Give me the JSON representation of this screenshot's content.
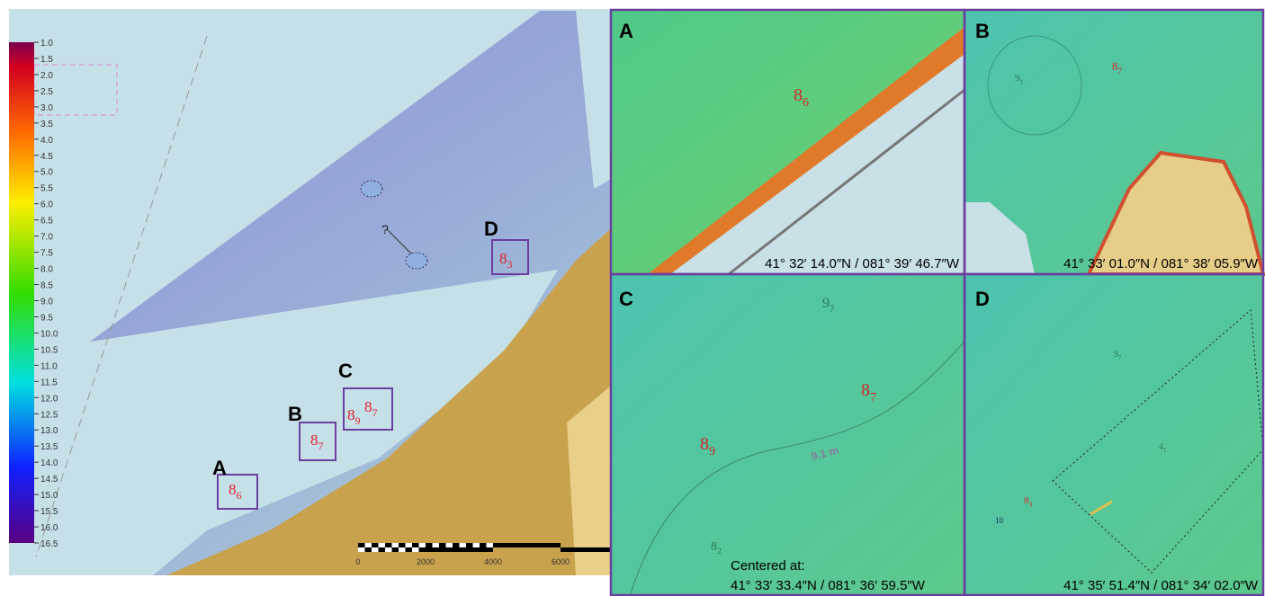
{
  "colorbar": {
    "ticks": [
      "1.0",
      "1.5",
      "2.0",
      "2.5",
      "3.0",
      "3.5",
      "4.0",
      "4.5",
      "5.0",
      "5.5",
      "6.0",
      "6.5",
      "7.0",
      "7.5",
      "8.0",
      "8.5",
      "9.0",
      "9.5",
      "10.0",
      "10.5",
      "11.0",
      "11.5",
      "12.0",
      "12.5",
      "13.0",
      "13.5",
      "14.0",
      "14.5",
      "15.0",
      "15.5",
      "16.0",
      "16.5"
    ]
  },
  "scale_bar": {
    "ticks": [
      "0",
      "2000",
      "4000",
      "6000"
    ]
  },
  "overview": {
    "question": "?",
    "boxes": [
      {
        "label": "A",
        "soundings": [
          {
            "depth": "8",
            "sub": "6"
          }
        ]
      },
      {
        "label": "B",
        "soundings": [
          {
            "depth": "8",
            "sub": "7"
          }
        ]
      },
      {
        "label": "C",
        "soundings": [
          {
            "depth": "8",
            "sub": "9"
          },
          {
            "depth": "8",
            "sub": "7"
          }
        ]
      },
      {
        "label": "D",
        "soundings": [
          {
            "depth": "8",
            "sub": "3"
          }
        ]
      }
    ]
  },
  "panels": [
    {
      "label": "A",
      "caption": "41° 32′ 14.0″N / 081° 39′ 46.7″W",
      "soundings": [
        {
          "depth": "8",
          "sub": "6"
        }
      ]
    },
    {
      "label": "B",
      "caption": "41° 33′ 01.0″N / 081° 38′ 05.9″W",
      "soundings": [
        {
          "depth": "9",
          "sub": "1"
        },
        {
          "depth": "8",
          "sub": "7"
        }
      ]
    },
    {
      "label": "C",
      "caption_heading": "Centered at:",
      "caption": "41° 33′ 33.4″N / 081° 36′ 59.5″W",
      "contour_label": "9.1 m",
      "soundings": [
        {
          "depth": "9",
          "sub": "7"
        },
        {
          "depth": "8",
          "sub": "7"
        },
        {
          "depth": "8",
          "sub": "9"
        },
        {
          "depth": "8",
          "sub": "2"
        }
      ]
    },
    {
      "label": "D",
      "caption": "41° 35′ 51.4″N / 081° 34′ 02.0″W",
      "soundings": [
        {
          "depth": "9",
          "sub": "7"
        },
        {
          "depth": "4",
          "sub": "1"
        },
        {
          "depth": "8",
          "sub": "3"
        },
        {
          "depth": "10"
        }
      ]
    }
  ]
}
